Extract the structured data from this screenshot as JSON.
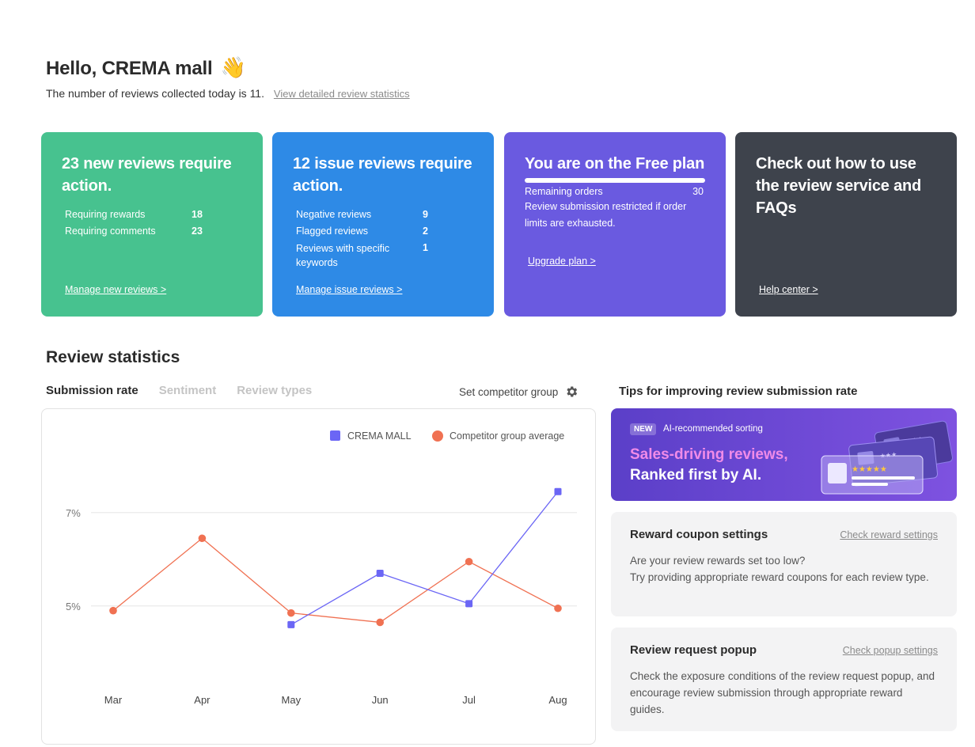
{
  "header": {
    "greeting": "Hello, CREMA mall",
    "wave_emoji": "👋",
    "subtitle": "The number of reviews collected today is 11.",
    "stats_link": "View detailed review statistics"
  },
  "cards": {
    "new_reviews": {
      "title": "23 new reviews require action.",
      "rows": [
        {
          "label": "Requiring rewards",
          "value": "18"
        },
        {
          "label": "Requiring comments",
          "value": "23"
        }
      ],
      "link": "Manage new reviews >",
      "color": "#47c28f"
    },
    "issue_reviews": {
      "title": "12 issue reviews require action.",
      "rows": [
        {
          "label": "Negative reviews",
          "value": "9"
        },
        {
          "label": "Flagged reviews",
          "value": "2"
        },
        {
          "label": "Reviews with specific keywords",
          "value": "1"
        }
      ],
      "link": "Manage issue reviews >",
      "color": "#2e8ae6"
    },
    "plan": {
      "title": "You are on the Free plan",
      "progress_fraction": 1.0,
      "remaining_label": "Remaining orders",
      "remaining_value": "30",
      "description": "Review submission restricted if order limits are exhausted.",
      "link": "Upgrade plan >",
      "color": "#6a5ae0"
    },
    "help": {
      "title": "Check out how to use the review service and FAQs",
      "link": "Help center >",
      "color": "#3e434c"
    }
  },
  "stats": {
    "title": "Review statistics",
    "tabs": [
      "Submission rate",
      "Sentiment",
      "Review types"
    ],
    "active_tab": 0,
    "competitor_label": "Set competitor group",
    "competitor_icon": "gear-icon"
  },
  "chart_data": {
    "type": "line",
    "categories": [
      "Mar",
      "Apr",
      "May",
      "Jun",
      "Jul",
      "Aug"
    ],
    "y_ticks": [
      "7%",
      "5%"
    ],
    "y_tick_values": [
      7,
      5
    ],
    "ylim": [
      3.2,
      8.2
    ],
    "grid": true,
    "legend_position": "top-right",
    "series": [
      {
        "name": "CREMA MALL",
        "color": "#6b66f5",
        "marker": "square",
        "values": [
          null,
          null,
          4.6,
          5.7,
          5.05,
          7.45
        ]
      },
      {
        "name": "Competitor group average",
        "color": "#f07152",
        "marker": "circle",
        "values": [
          4.9,
          6.45,
          4.85,
          4.65,
          5.95,
          4.95
        ]
      }
    ]
  },
  "tips": {
    "title": "Tips for improving review submission rate",
    "banner": {
      "badge": "NEW",
      "badge_text": "AI-recommended sorting",
      "headline1": "Sales-driving reviews,",
      "headline2": "Ranked first by AI."
    },
    "reward": {
      "title": "Reward coupon settings",
      "link": "Check reward settings",
      "body_line1": "Are your review rewards set too low?",
      "body_line2": "Try providing appropriate reward coupons for each review type."
    },
    "popup": {
      "title": "Review request popup",
      "link": "Check popup settings",
      "body": "Check the exposure conditions of the review request popup, and encourage review submission through appropriate reward guides."
    }
  }
}
